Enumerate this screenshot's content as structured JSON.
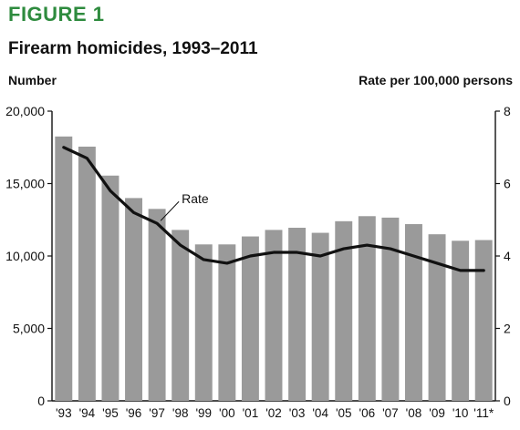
{
  "figure_label": "FIGURE 1",
  "title": "Firearm homicides, 1993–2011",
  "colors": {
    "label": "#2e8b3e",
    "bars": "#9a9a9a",
    "line": "#111111"
  },
  "chart_data": {
    "type": "bar",
    "title": "Firearm homicides, 1993–2011",
    "categories": [
      "'93",
      "'94",
      "'95",
      "'96",
      "'97",
      "'98",
      "'99",
      "'00",
      "'01",
      "'02",
      "'03",
      "'04",
      "'05",
      "'06",
      "'07",
      "'08",
      "'09",
      "'10",
      "'11*"
    ],
    "ylabel": "Number",
    "ylabel_right": "Rate per 100,000 persons",
    "ylim": [
      0,
      20000
    ],
    "yticks": [
      0,
      5000,
      10000,
      15000,
      20000
    ],
    "ytick_labels": [
      "0",
      "5,000",
      "10,000",
      "15,000",
      "20,000"
    ],
    "y2lim": [
      0,
      8
    ],
    "y2ticks": [
      0,
      2,
      4,
      6,
      8
    ],
    "y2tick_labels": [
      "0",
      "2",
      "4",
      "6",
      "8"
    ],
    "grid": false,
    "series": [
      {
        "type": "bar",
        "axis": "left",
        "values": [
          18250,
          17550,
          15550,
          14000,
          13250,
          11800,
          10800,
          10800,
          11350,
          11800,
          11950,
          11600,
          12400,
          12750,
          12650,
          12200,
          11500,
          11050,
          11100
        ]
      },
      {
        "type": "line",
        "name": "Rate",
        "axis": "right",
        "values": [
          7.0,
          6.7,
          5.8,
          5.2,
          4.9,
          4.3,
          3.9,
          3.8,
          4.0,
          4.1,
          4.1,
          4.0,
          4.2,
          4.3,
          4.2,
          4.0,
          3.8,
          3.6,
          3.6
        ]
      }
    ],
    "annotations": [
      {
        "text": "Rate",
        "series": "Rate",
        "index": 4
      }
    ]
  }
}
